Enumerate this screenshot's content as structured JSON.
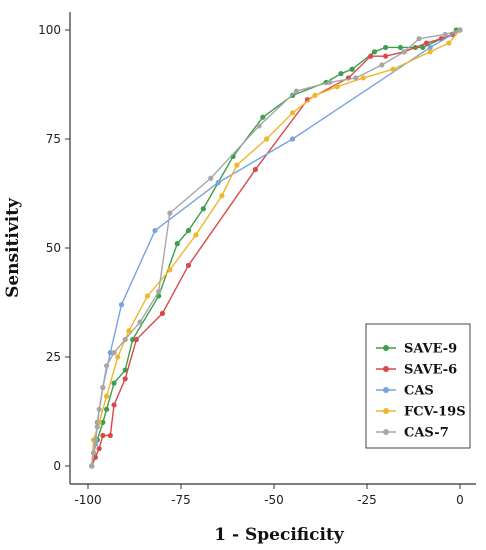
{
  "chart_data": {
    "type": "line",
    "xlabel": "1 - Specificity",
    "ylabel": "Sensitivity",
    "xlim": [
      -100,
      0
    ],
    "ylim": [
      0,
      100
    ],
    "x_ticks": [
      -100,
      -75,
      -50,
      -25,
      0
    ],
    "y_ticks": [
      0,
      25,
      50,
      75,
      100
    ],
    "legend_position": "bottom-right",
    "series": [
      {
        "name": "SAVE-9",
        "color": "#3aa04a",
        "points": [
          [
            -99,
            0
          ],
          [
            -98.5,
            3
          ],
          [
            -97.5,
            6
          ],
          [
            -96,
            10
          ],
          [
            -95,
            13
          ],
          [
            -93,
            19
          ],
          [
            -90,
            22
          ],
          [
            -88,
            29
          ],
          [
            -81,
            39
          ],
          [
            -76,
            51
          ],
          [
            -73,
            54
          ],
          [
            -69,
            59
          ],
          [
            -61,
            71
          ],
          [
            -53,
            80
          ],
          [
            -45,
            85
          ],
          [
            -36,
            88
          ],
          [
            -32,
            90
          ],
          [
            -29,
            91
          ],
          [
            -23,
            95
          ],
          [
            -20,
            96
          ],
          [
            -16,
            96
          ],
          [
            -12,
            96
          ],
          [
            -10,
            96
          ],
          [
            -5,
            98
          ],
          [
            -2,
            99
          ],
          [
            -1,
            100
          ],
          [
            0,
            100
          ]
        ]
      },
      {
        "name": "SAVE-6",
        "color": "#d9484a",
        "points": [
          [
            -99,
            0
          ],
          [
            -98,
            2
          ],
          [
            -97,
            4
          ],
          [
            -96,
            7
          ],
          [
            -94,
            7
          ],
          [
            -93,
            14
          ],
          [
            -90,
            20
          ],
          [
            -87,
            29
          ],
          [
            -80,
            35
          ],
          [
            -73,
            46
          ],
          [
            -55,
            68
          ],
          [
            -41,
            84
          ],
          [
            -30,
            89
          ],
          [
            -24,
            94
          ],
          [
            -20,
            94
          ],
          [
            -15,
            95
          ],
          [
            -9,
            97
          ],
          [
            -5,
            98
          ],
          [
            -2,
            99
          ],
          [
            0,
            100
          ]
        ]
      },
      {
        "name": "CAS",
        "color": "#78a3e0",
        "points": [
          [
            -99,
            0
          ],
          [
            -98,
            5
          ],
          [
            -97.5,
            10
          ],
          [
            -96,
            18
          ],
          [
            -94,
            26
          ],
          [
            -91,
            37
          ],
          [
            -82,
            54
          ],
          [
            -65,
            65
          ],
          [
            -45,
            75
          ],
          [
            -8,
            96
          ],
          [
            0,
            100
          ]
        ]
      },
      {
        "name": "FCV-19S",
        "color": "#f0b62a",
        "points": [
          [
            -99,
            0
          ],
          [
            -98.5,
            6
          ],
          [
            -97,
            10
          ],
          [
            -95,
            16
          ],
          [
            -92,
            25
          ],
          [
            -89,
            31
          ],
          [
            -84,
            39
          ],
          [
            -78,
            45
          ],
          [
            -71,
            53
          ],
          [
            -64,
            62
          ],
          [
            -60,
            69
          ],
          [
            -52,
            75
          ],
          [
            -45,
            81
          ],
          [
            -39,
            85
          ],
          [
            -33,
            87
          ],
          [
            -26,
            89
          ],
          [
            -18,
            91
          ],
          [
            -8,
            95
          ],
          [
            -3,
            97
          ],
          [
            0,
            100
          ]
        ]
      },
      {
        "name": "CAS-7",
        "color": "#a7a7a7",
        "points": [
          [
            -99,
            0
          ],
          [
            -98.5,
            3
          ],
          [
            -98,
            6
          ],
          [
            -97.5,
            9
          ],
          [
            -97,
            13
          ],
          [
            -96,
            18
          ],
          [
            -95,
            23
          ],
          [
            -93,
            26
          ],
          [
            -90,
            29
          ],
          [
            -86,
            33
          ],
          [
            -81,
            40
          ],
          [
            -78,
            58
          ],
          [
            -67,
            66
          ],
          [
            -54,
            78
          ],
          [
            -44,
            86
          ],
          [
            -35,
            88
          ],
          [
            -28,
            89
          ],
          [
            -21,
            92
          ],
          [
            -15,
            95
          ],
          [
            -11,
            98
          ],
          [
            -4,
            99
          ],
          [
            0,
            100
          ]
        ]
      }
    ]
  }
}
